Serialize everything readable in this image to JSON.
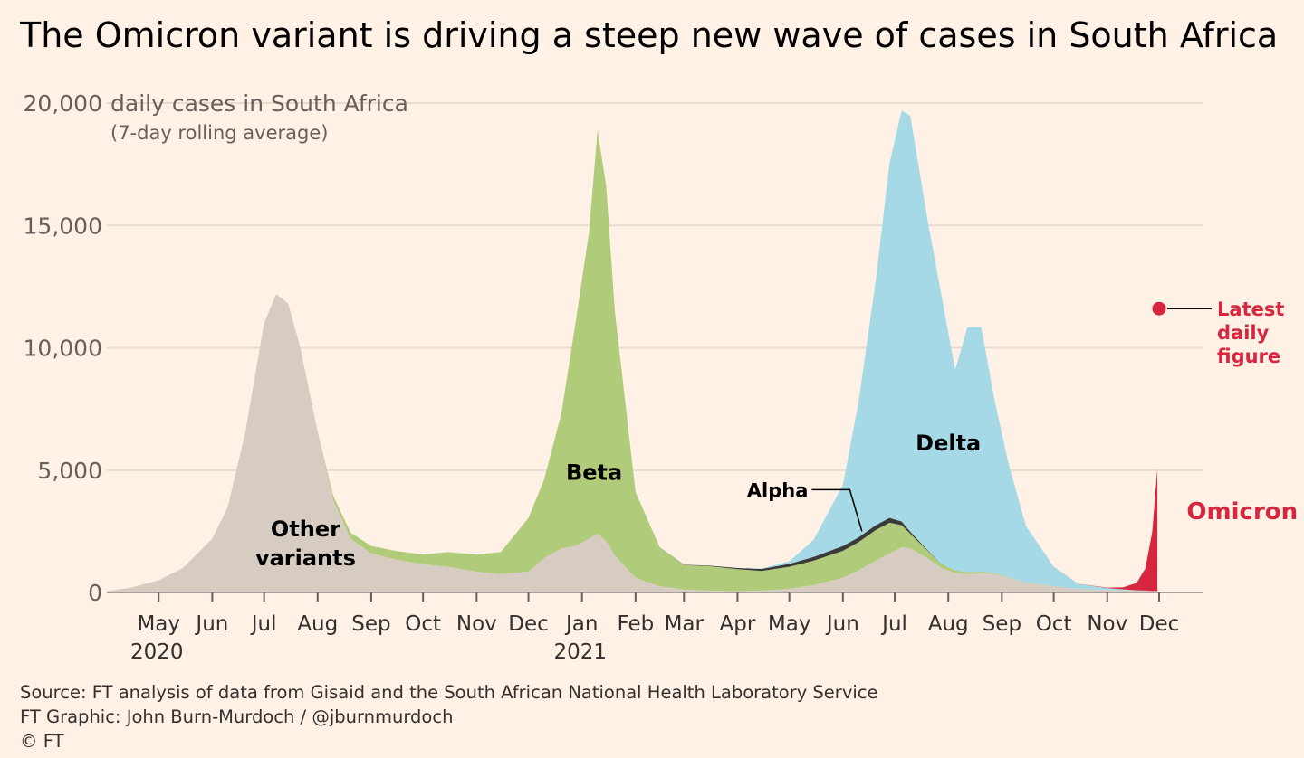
{
  "title": "The Omicron variant is driving a steep new wave of cases in South Africa",
  "footer": {
    "source": "Source: FT analysis of data from Gisaid and the South African National Health Laboratory Service",
    "graphic": "FT Graphic: John Burn-Murdoch / @jburnmurdoch",
    "copyright": "© FT"
  },
  "colors": {
    "other": "#D6CCC2",
    "beta": "#B0CC7A",
    "alpha": "#3A3A3A",
    "delta": "#A6D9E6",
    "omicron": "#D7263D",
    "grid": "#E8DCCF",
    "background": "#FFF1E5"
  },
  "chart_data": {
    "type": "area",
    "stacked": true,
    "ylabel": "daily cases in South Africa",
    "ylabel_sub": "(7-day rolling average)",
    "ylim": [
      0,
      20000
    ],
    "yticks": [
      0,
      5000,
      10000,
      15000,
      20000
    ],
    "ytick_labels": [
      "0",
      "5,000",
      "10,000",
      "15,000",
      "20,000"
    ],
    "grid": true,
    "xlim": [
      "2020-04-01",
      "2021-12-01"
    ],
    "xticks": [
      "May",
      "Jun",
      "Jul",
      "Aug",
      "Sep",
      "Oct",
      "Nov",
      "Dec",
      "Jan",
      "Feb",
      "Mar",
      "Apr",
      "May",
      "Jun",
      "Jul",
      "Aug",
      "Sep",
      "Oct",
      "Nov",
      "Dec"
    ],
    "year_labels": [
      {
        "label": "2020",
        "month_index": 0
      },
      {
        "label": "2021",
        "month_index": 8
      }
    ],
    "x": [
      "2020-04-01",
      "2020-04-15",
      "2020-05-01",
      "2020-05-15",
      "2020-06-01",
      "2020-06-10",
      "2020-06-20",
      "2020-07-01",
      "2020-07-08",
      "2020-07-15",
      "2020-07-22",
      "2020-08-01",
      "2020-08-10",
      "2020-08-20",
      "2020-09-01",
      "2020-09-15",
      "2020-10-01",
      "2020-10-15",
      "2020-11-01",
      "2020-11-15",
      "2020-12-01",
      "2020-12-10",
      "2020-12-20",
      "2020-12-28",
      "2021-01-05",
      "2021-01-10",
      "2021-01-15",
      "2021-01-20",
      "2021-02-01",
      "2021-02-15",
      "2021-03-01",
      "2021-03-15",
      "2021-04-01",
      "2021-04-15",
      "2021-05-01",
      "2021-05-15",
      "2021-06-01",
      "2021-06-10",
      "2021-06-20",
      "2021-06-28",
      "2021-07-05",
      "2021-07-10",
      "2021-07-20",
      "2021-07-28",
      "2021-08-05",
      "2021-08-12",
      "2021-08-20",
      "2021-08-28",
      "2021-09-05",
      "2021-09-15",
      "2021-10-01",
      "2021-10-15",
      "2021-11-01",
      "2021-11-10",
      "2021-11-18",
      "2021-11-23",
      "2021-11-27",
      "2021-11-30"
    ],
    "series": [
      {
        "name": "Other variants",
        "key": "other",
        "values": [
          50,
          200,
          500,
          1000,
          2200,
          3500,
          6500,
          11000,
          12200,
          11800,
          10000,
          6500,
          3800,
          2200,
          1600,
          1350,
          1150,
          1050,
          850,
          750,
          850,
          1400,
          1800,
          1900,
          2200,
          2400,
          2100,
          1500,
          600,
          250,
          120,
          80,
          50,
          80,
          150,
          300,
          600,
          900,
          1300,
          1600,
          1850,
          1800,
          1400,
          1000,
          800,
          750,
          800,
          750,
          600,
          400,
          250,
          150,
          100,
          90,
          70,
          70,
          60,
          60
        ]
      },
      {
        "name": "Beta",
        "key": "beta",
        "values": [
          0,
          0,
          0,
          0,
          0,
          0,
          0,
          0,
          0,
          0,
          0,
          50,
          150,
          250,
          300,
          350,
          400,
          600,
          700,
          900,
          2200,
          3200,
          5500,
          9000,
          12500,
          16500,
          14500,
          10000,
          3500,
          1600,
          1000,
          1000,
          900,
          800,
          900,
          1000,
          1100,
          1150,
          1250,
          1250,
          900,
          600,
          300,
          150,
          100,
          80,
          50,
          30,
          20,
          10,
          5,
          0,
          0,
          0,
          0,
          0,
          0,
          0
        ]
      },
      {
        "name": "Alpha",
        "key": "alpha",
        "values": [
          0,
          0,
          0,
          0,
          0,
          0,
          0,
          0,
          0,
          0,
          0,
          0,
          0,
          0,
          0,
          0,
          0,
          0,
          0,
          0,
          0,
          0,
          0,
          0,
          0,
          0,
          0,
          0,
          0,
          0,
          10,
          20,
          50,
          80,
          120,
          150,
          200,
          200,
          200,
          200,
          150,
          80,
          30,
          10,
          0,
          0,
          0,
          0,
          0,
          0,
          0,
          0,
          0,
          0,
          0,
          0,
          0,
          0
        ]
      },
      {
        "name": "Delta",
        "key": "delta",
        "values": [
          0,
          0,
          0,
          0,
          0,
          0,
          0,
          0,
          0,
          0,
          0,
          0,
          0,
          0,
          0,
          0,
          0,
          0,
          0,
          0,
          0,
          0,
          0,
          0,
          0,
          0,
          0,
          0,
          0,
          0,
          0,
          0,
          0,
          20,
          100,
          700,
          2500,
          5500,
          10000,
          14500,
          16800,
          17000,
          13500,
          11000,
          8200,
          10000,
          10000,
          7000,
          4600,
          2300,
          800,
          200,
          80,
          40,
          20,
          10,
          0,
          0
        ]
      },
      {
        "name": "Omicron",
        "key": "omicron",
        "values": [
          0,
          0,
          0,
          0,
          0,
          0,
          0,
          0,
          0,
          0,
          0,
          0,
          0,
          0,
          0,
          0,
          0,
          0,
          0,
          0,
          0,
          0,
          0,
          0,
          0,
          0,
          0,
          0,
          0,
          0,
          0,
          0,
          0,
          0,
          0,
          0,
          0,
          0,
          0,
          0,
          0,
          0,
          0,
          0,
          0,
          0,
          0,
          0,
          0,
          0,
          0,
          5,
          20,
          80,
          300,
          900,
          2400,
          5000
        ]
      }
    ],
    "annotations": [
      {
        "text": [
          "Other",
          "variants"
        ],
        "series": "other",
        "x": "2020-07-25",
        "y": 2300,
        "color": "#000000"
      },
      {
        "text": [
          "Beta"
        ],
        "series": "beta",
        "x": "2021-01-08",
        "y": 4600,
        "color": "#000000"
      },
      {
        "text": [
          "Delta"
        ],
        "series": "delta",
        "x": "2021-08-01",
        "y": 5800,
        "color": "#000000"
      },
      {
        "text": [
          "Omicron"
        ],
        "series": "omicron",
        "x": "2021-12-18",
        "y": 3000,
        "color": "#D7263D"
      }
    ],
    "alpha_callout": {
      "text": "Alpha",
      "x": "2021-05-15",
      "y": 4200,
      "target_x": "2021-06-12",
      "target_y": 2500
    },
    "latest_point": {
      "x": "2021-12-01",
      "y": 11600,
      "label": [
        "Latest",
        "daily",
        "figure"
      ]
    }
  }
}
